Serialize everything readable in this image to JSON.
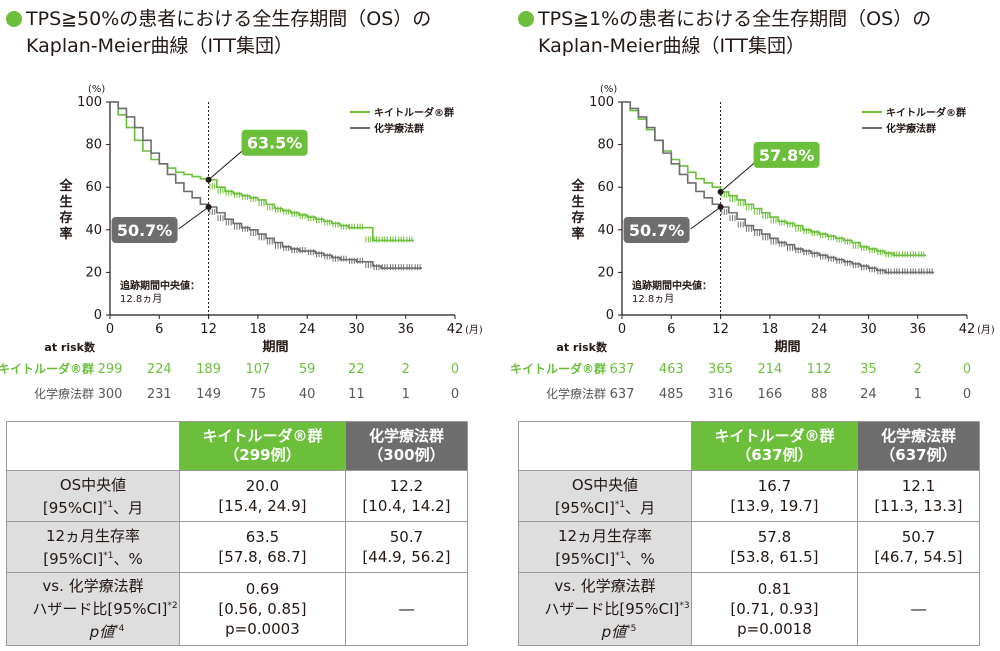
{
  "panels": [
    {
      "title_line1": "TPS≧50%の患者における全生存期間（OS）の",
      "title_line2": "Kaplan-Meier曲線（ITT集団）",
      "chart_data": {
        "type": "line",
        "ylabel": "全生存率",
        "yunit": "(%)",
        "xlabel": "期間",
        "xunit": "(月)",
        "xlim": [
          0,
          42
        ],
        "ylim": [
          0,
          100
        ],
        "xticks": [
          "0",
          "6",
          "12",
          "18",
          "24",
          "30",
          "36",
          "42"
        ],
        "yticks": [
          "0",
          "20",
          "40",
          "60",
          "80",
          "100"
        ],
        "legend_position": "top-right",
        "series": [
          {
            "name": "キイトルーダ®群",
            "color": "#6bbf3a",
            "points": [
              [
                0,
                100
              ],
              [
                1,
                94
              ],
              [
                2,
                88
              ],
              [
                3,
                82
              ],
              [
                4,
                77
              ],
              [
                5,
                73
              ],
              [
                6,
                71
              ],
              [
                7,
                69
              ],
              [
                8,
                67
              ],
              [
                9,
                66
              ],
              [
                10,
                65
              ],
              [
                11,
                64
              ],
              [
                12,
                63.5
              ],
              [
                13,
                60
              ],
              [
                14,
                58
              ],
              [
                15,
                57
              ],
              [
                16,
                56
              ],
              [
                17,
                55
              ],
              [
                18,
                54
              ],
              [
                19,
                52
              ],
              [
                20,
                50
              ],
              [
                21,
                49
              ],
              [
                22,
                48
              ],
              [
                23,
                47
              ],
              [
                24,
                46
              ],
              [
                25,
                45
              ],
              [
                26,
                44
              ],
              [
                27,
                43
              ],
              [
                28,
                42
              ],
              [
                29,
                41
              ],
              [
                30,
                41
              ],
              [
                31,
                41
              ],
              [
                32,
                35
              ],
              [
                33,
                35
              ],
              [
                34,
                35
              ],
              [
                35,
                35
              ],
              [
                36,
                35
              ],
              [
                37,
                35
              ]
            ]
          },
          {
            "name": "化学療法群",
            "color": "#6d6d6d",
            "points": [
              [
                0,
                100
              ],
              [
                1,
                97
              ],
              [
                2,
                93
              ],
              [
                3,
                88
              ],
              [
                4,
                82
              ],
              [
                5,
                76
              ],
              [
                6,
                71
              ],
              [
                7,
                66
              ],
              [
                8,
                62
              ],
              [
                9,
                58
              ],
              [
                10,
                55
              ],
              [
                11,
                52
              ],
              [
                12,
                50.7
              ],
              [
                13,
                48
              ],
              [
                14,
                45
              ],
              [
                15,
                43
              ],
              [
                16,
                41
              ],
              [
                17,
                40
              ],
              [
                18,
                38
              ],
              [
                19,
                36
              ],
              [
                20,
                34
              ],
              [
                21,
                32
              ],
              [
                22,
                31
              ],
              [
                23,
                30
              ],
              [
                24,
                30
              ],
              [
                25,
                29
              ],
              [
                26,
                28
              ],
              [
                27,
                27
              ],
              [
                28,
                26
              ],
              [
                29,
                26
              ],
              [
                30,
                25
              ],
              [
                31,
                25
              ],
              [
                32,
                23
              ],
              [
                33,
                22
              ],
              [
                34,
                22
              ],
              [
                35,
                22
              ],
              [
                36,
                22
              ],
              [
                37,
                22
              ],
              [
                38,
                22
              ]
            ]
          }
        ],
        "reference_x": 12,
        "callouts": [
          {
            "label": "63.5%",
            "x": 12,
            "y": 63.5,
            "series": 0
          },
          {
            "label": "50.7%",
            "x": 12,
            "y": 50.7,
            "series": 1
          }
        ],
        "median_note_line1": "追跡期間中央値：",
        "median_note_line2": "12.8ヵ月"
      },
      "at_risk": {
        "header": "at risk数",
        "rows": [
          {
            "label": "キイトルーダ®群",
            "values": [
              "299",
              "224",
              "189",
              "107",
              "59",
              "22",
              "2",
              "0"
            ]
          },
          {
            "label": "化学療法群",
            "values": [
              "300",
              "231",
              "149",
              "75",
              "40",
              "11",
              "1",
              "0"
            ]
          }
        ]
      },
      "table": {
        "col_keytruda_1": "キイトルーダ®群",
        "col_keytruda_2": "（299例）",
        "col_chemo_1": "化学療法群",
        "col_chemo_2": "（300例）",
        "row_os_label1": "OS中央値",
        "row_os_label2": "[95%CI]",
        "row_os_label3": "、月",
        "os_k_val": "20.0",
        "os_k_ci": "[15.4, 24.9]",
        "os_c_val": "12.2",
        "os_c_ci": "[10.4, 14.2]",
        "row_12m_label1": "12ヵ月生存率",
        "row_12m_label2": "[95%CI]",
        "row_12m_label3": "、%",
        "m12_k_val": "63.5",
        "m12_k_ci": "[57.8, 68.7]",
        "m12_c_val": "50.7",
        "m12_c_ci": "[44.9, 56.2]",
        "row_hr_label1": "vs. 化学療法群",
        "row_hr_label2": "ハザード比[95%CI]",
        "row_hr_label3": "p値",
        "hr_sup": "*2",
        "p_sup": "*4",
        "ci_sup": "*1",
        "hr_val": "0.69",
        "hr_ci": "[0.56, 0.85]",
        "hr_p": "p=0.0003",
        "hr_chemo": "―"
      }
    },
    {
      "title_line1": "TPS≧1%の患者における全生存期間（OS）の",
      "title_line2": "Kaplan-Meier曲線（ITT集団）",
      "chart_data": {
        "type": "line",
        "ylabel": "全生存率",
        "yunit": "(%)",
        "xlabel": "期間",
        "xunit": "(月)",
        "xlim": [
          0,
          42
        ],
        "ylim": [
          0,
          100
        ],
        "xticks": [
          "0",
          "6",
          "12",
          "18",
          "24",
          "30",
          "36",
          "42"
        ],
        "yticks": [
          "0",
          "20",
          "40",
          "60",
          "80",
          "100"
        ],
        "legend_position": "top-right",
        "series": [
          {
            "name": "キイトルーダ®群",
            "color": "#6bbf3a",
            "points": [
              [
                0,
                100
              ],
              [
                1,
                96
              ],
              [
                2,
                92
              ],
              [
                3,
                87
              ],
              [
                4,
                82
              ],
              [
                5,
                77
              ],
              [
                6,
                73
              ],
              [
                7,
                70
              ],
              [
                8,
                67
              ],
              [
                9,
                64
              ],
              [
                10,
                62
              ],
              [
                11,
                60
              ],
              [
                12,
                57.8
              ],
              [
                13,
                56
              ],
              [
                14,
                54
              ],
              [
                15,
                52
              ],
              [
                16,
                50
              ],
              [
                17,
                48
              ],
              [
                18,
                46
              ],
              [
                19,
                44
              ],
              [
                20,
                43
              ],
              [
                21,
                42
              ],
              [
                22,
                40
              ],
              [
                23,
                39
              ],
              [
                24,
                38
              ],
              [
                25,
                37
              ],
              [
                26,
                36
              ],
              [
                27,
                35
              ],
              [
                28,
                34
              ],
              [
                29,
                32
              ],
              [
                30,
                31
              ],
              [
                31,
                30
              ],
              [
                32,
                29
              ],
              [
                33,
                28
              ],
              [
                34,
                28
              ],
              [
                35,
                28
              ],
              [
                36,
                28
              ],
              [
                37,
                28
              ]
            ]
          },
          {
            "name": "化学療法群",
            "color": "#6d6d6d",
            "points": [
              [
                0,
                100
              ],
              [
                1,
                97
              ],
              [
                2,
                93
              ],
              [
                3,
                88
              ],
              [
                4,
                82
              ],
              [
                5,
                76
              ],
              [
                6,
                71
              ],
              [
                7,
                66
              ],
              [
                8,
                62
              ],
              [
                9,
                58
              ],
              [
                10,
                55
              ],
              [
                11,
                52
              ],
              [
                12,
                50.7
              ],
              [
                13,
                48
              ],
              [
                14,
                45
              ],
              [
                15,
                42
              ],
              [
                16,
                40
              ],
              [
                17,
                38
              ],
              [
                18,
                36
              ],
              [
                19,
                34
              ],
              [
                20,
                33
              ],
              [
                21,
                31
              ],
              [
                22,
                30
              ],
              [
                23,
                29
              ],
              [
                24,
                28
              ],
              [
                25,
                27
              ],
              [
                26,
                26
              ],
              [
                27,
                25
              ],
              [
                28,
                24
              ],
              [
                29,
                23
              ],
              [
                30,
                22
              ],
              [
                31,
                21
              ],
              [
                32,
                20
              ],
              [
                33,
                20
              ],
              [
                34,
                20
              ],
              [
                35,
                20
              ],
              [
                36,
                20
              ],
              [
                37,
                20
              ],
              [
                38,
                20
              ]
            ]
          }
        ],
        "reference_x": 12,
        "callouts": [
          {
            "label": "57.8%",
            "x": 12,
            "y": 57.8,
            "series": 0
          },
          {
            "label": "50.7%",
            "x": 12,
            "y": 50.7,
            "series": 1
          }
        ],
        "median_note_line1": "追跡期間中央値：",
        "median_note_line2": "12.8ヵ月"
      },
      "at_risk": {
        "header": "at risk数",
        "rows": [
          {
            "label": "キイトルーダ®群",
            "values": [
              "637",
              "463",
              "365",
              "214",
              "112",
              "35",
              "2",
              "0"
            ]
          },
          {
            "label": "化学療法群",
            "values": [
              "637",
              "485",
              "316",
              "166",
              "88",
              "24",
              "1",
              "0"
            ]
          }
        ]
      },
      "table": {
        "col_keytruda_1": "キイトルーダ®群",
        "col_keytruda_2": "（637例）",
        "col_chemo_1": "化学療法群",
        "col_chemo_2": "（637例）",
        "row_os_label1": "OS中央値",
        "row_os_label2": "[95%CI]",
        "row_os_label3": "、月",
        "os_k_val": "16.7",
        "os_k_ci": "[13.9, 19.7]",
        "os_c_val": "12.1",
        "os_c_ci": "[11.3, 13.3]",
        "row_12m_label1": "12ヵ月生存率",
        "row_12m_label2": "[95%CI]",
        "row_12m_label3": "、%",
        "m12_k_val": "57.8",
        "m12_k_ci": "[53.8, 61.5]",
        "m12_c_val": "50.7",
        "m12_c_ci": "[46.7, 54.5]",
        "row_hr_label1": "vs. 化学療法群",
        "row_hr_label2": "ハザード比[95%CI]",
        "row_hr_label3": "p値",
        "hr_sup": "*3",
        "p_sup": "*5",
        "ci_sup": "*1",
        "hr_val": "0.81",
        "hr_ci": "[0.71, 0.93]",
        "hr_p": "p=0.0018",
        "hr_chemo": "―"
      }
    }
  ]
}
